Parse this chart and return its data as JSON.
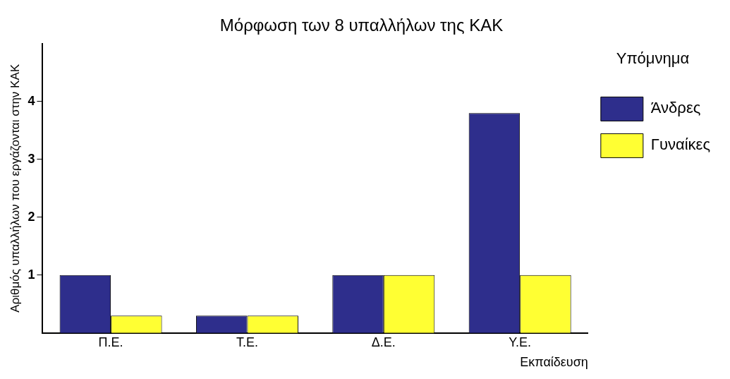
{
  "chart_data": {
    "type": "bar",
    "title": "Μόρφωση των 8 υπαλλήλων της ΚΑΚ",
    "xlabel": "Εκπαίδευση",
    "ylabel": "Αριθμός υπαλλήλων που εργάζονται στην ΚΑΚ",
    "legend_title": "Υπόμνημα",
    "categories": [
      "Π.Ε.",
      "Τ.Ε.",
      "Δ.Ε.",
      "Υ.Ε."
    ],
    "series": [
      {
        "name": "Άνδρες",
        "color": "#2e2e8c",
        "values": [
          1,
          0.3,
          1,
          3.8
        ]
      },
      {
        "name": "Γυναίκες",
        "color": "#ffff33",
        "values": [
          0.3,
          0.3,
          1,
          1
        ]
      }
    ],
    "ylim": [
      0,
      5
    ],
    "yticks": [
      1,
      2,
      3,
      4
    ],
    "grid": false,
    "legend": "right"
  }
}
